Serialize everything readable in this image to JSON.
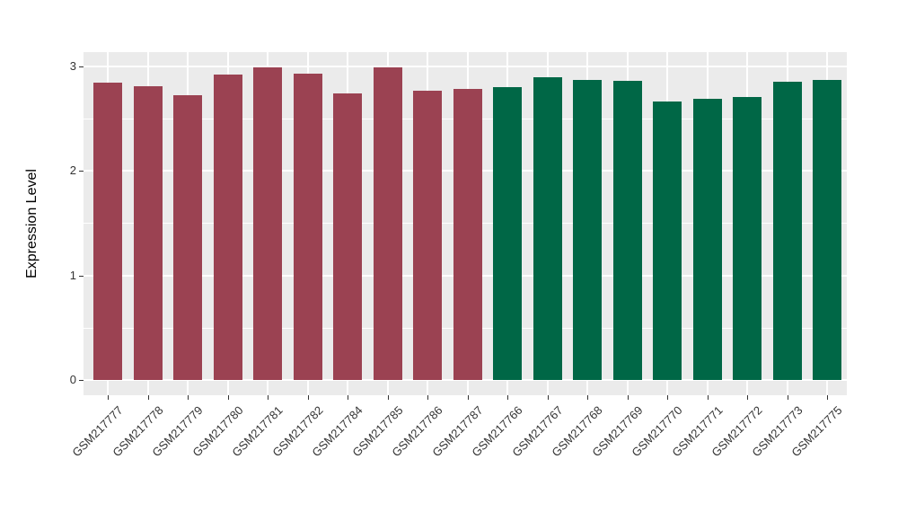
{
  "chart_data": {
    "type": "bar",
    "title": "",
    "xlabel": "",
    "ylabel": "Expression Level",
    "ylim": [
      0,
      3.15
    ],
    "yticks": [
      0,
      1,
      2,
      3
    ],
    "minor_yticks": [
      0.5,
      1.5,
      2.5
    ],
    "grid": true,
    "legend": false,
    "panel_background": "#EBEBEB",
    "gridline_color": "#FFFFFF",
    "axis_text_color": "#333333",
    "group_colors": {
      "red": "#9B4252",
      "green": "#006746"
    },
    "categories": [
      "GSM217777",
      "GSM217778",
      "GSM217779",
      "GSM217780",
      "GSM217781",
      "GSM217782",
      "GSM217784",
      "GSM217785",
      "GSM217786",
      "GSM217787",
      "GSM217766",
      "GSM217767",
      "GSM217768",
      "GSM217769",
      "GSM217770",
      "GSM217771",
      "GSM217772",
      "GSM217773",
      "GSM217775"
    ],
    "values": [
      2.84,
      2.81,
      2.72,
      2.92,
      2.99,
      2.93,
      2.74,
      2.99,
      2.76,
      2.78,
      2.8,
      2.89,
      2.87,
      2.86,
      2.66,
      2.69,
      2.7,
      2.85,
      2.87
    ],
    "bar_groups": [
      "red",
      "red",
      "red",
      "red",
      "red",
      "red",
      "red",
      "red",
      "red",
      "red",
      "green",
      "green",
      "green",
      "green",
      "green",
      "green",
      "green",
      "green",
      "green"
    ]
  }
}
